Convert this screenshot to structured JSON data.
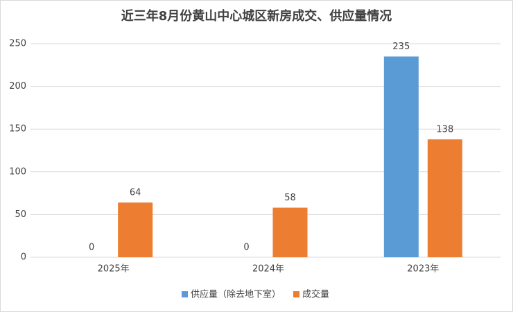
{
  "chart_data": {
    "type": "bar",
    "title": "近三年8月份黄山中心城区新房成交、供应量情况",
    "categories": [
      "2025年",
      "2024年",
      "2023年"
    ],
    "series": [
      {
        "name": "供应量（除去地下室）",
        "color": "#5b9bd5",
        "values": [
          0,
          0,
          235
        ]
      },
      {
        "name": "成交量",
        "color": "#ed7d31",
        "values": [
          64,
          58,
          138
        ]
      }
    ],
    "ylim": [
      0,
      250
    ],
    "yticks": [
      0,
      50,
      100,
      150,
      200,
      250
    ],
    "grid": true,
    "legend": "bottom"
  }
}
